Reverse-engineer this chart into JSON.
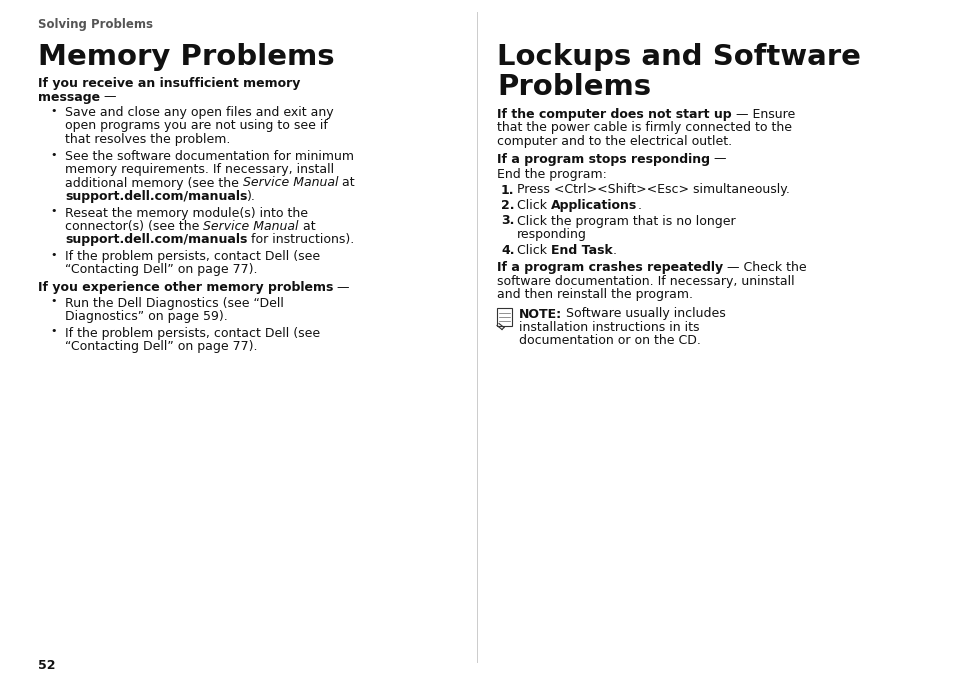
{
  "bg_color": "#ffffff",
  "page_number": "52",
  "header": "Solving Problems",
  "left_title": "Memory Problems",
  "right_title": "Lockups and Software\nProblems"
}
